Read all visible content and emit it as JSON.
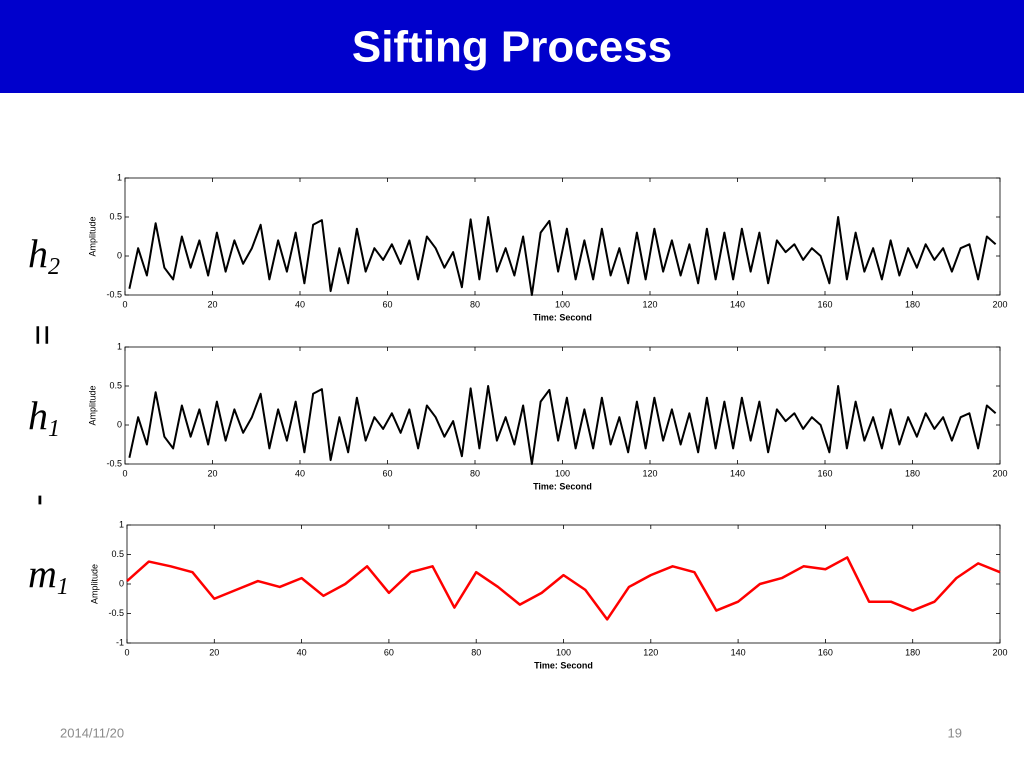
{
  "slide": {
    "title": "Sifting Process",
    "date": "2014/11/20",
    "page": "19",
    "labels": [
      {
        "base": "h",
        "sub": "2"
      },
      {
        "sign": "="
      },
      {
        "base": "h",
        "sub": "1"
      },
      {
        "sign": "-"
      },
      {
        "base": "m",
        "sub": "1"
      }
    ]
  },
  "chart_data": [
    {
      "type": "line",
      "ylabel": "Amplitude",
      "xlabel": "Time: Second",
      "xlim": [
        0,
        200
      ],
      "xticks": [
        0,
        20,
        40,
        60,
        80,
        100,
        120,
        140,
        160,
        180,
        200
      ],
      "ylim": [
        -0.5,
        1
      ],
      "yticks": [
        -0.5,
        0,
        0.5,
        1
      ],
      "x": [
        1,
        3,
        5,
        7,
        9,
        11,
        13,
        15,
        17,
        19,
        21,
        23,
        25,
        27,
        29,
        31,
        33,
        35,
        37,
        39,
        41,
        43,
        45,
        47,
        49,
        51,
        53,
        55,
        57,
        59,
        61,
        63,
        65,
        67,
        69,
        71,
        73,
        75,
        77,
        79,
        81,
        83,
        85,
        87,
        89,
        91,
        93,
        95,
        97,
        99,
        101,
        103,
        105,
        107,
        109,
        111,
        113,
        115,
        117,
        119,
        121,
        123,
        125,
        127,
        129,
        131,
        133,
        135,
        137,
        139,
        141,
        143,
        145,
        147,
        149,
        151,
        153,
        155,
        157,
        159,
        161,
        163,
        165,
        167,
        169,
        171,
        173,
        175,
        177,
        179,
        181,
        183,
        185,
        187,
        189,
        191,
        193,
        195,
        197,
        199
      ],
      "series": [
        {
          "name": "h2",
          "color": "#000000",
          "values": [
            -0.42,
            0.1,
            -0.25,
            0.42,
            -0.15,
            -0.3,
            0.25,
            -0.15,
            0.2,
            -0.25,
            0.3,
            -0.2,
            0.2,
            -0.1,
            0.1,
            0.4,
            -0.3,
            0.2,
            -0.2,
            0.3,
            -0.35,
            0.4,
            0.46,
            -0.45,
            0.1,
            -0.35,
            0.35,
            -0.2,
            0.1,
            -0.05,
            0.15,
            -0.1,
            0.2,
            -0.3,
            0.25,
            0.1,
            -0.15,
            0.05,
            -0.4,
            0.47,
            -0.3,
            0.5,
            -0.2,
            0.1,
            -0.25,
            0.25,
            -0.5,
            0.3,
            0.45,
            -0.2,
            0.35,
            -0.3,
            0.2,
            -0.3,
            0.35,
            -0.25,
            0.1,
            -0.35,
            0.3,
            -0.3,
            0.35,
            -0.2,
            0.2,
            -0.25,
            0.15,
            -0.35,
            0.35,
            -0.3,
            0.3,
            -0.3,
            0.35,
            -0.2,
            0.3,
            -0.35,
            0.2,
            0.05,
            0.15,
            -0.05,
            0.1,
            0.0,
            -0.35,
            0.5,
            -0.3,
            0.3,
            -0.2,
            0.1,
            -0.3,
            0.2,
            -0.25,
            0.1,
            -0.15,
            0.15,
            -0.05,
            0.1,
            -0.2,
            0.1,
            0.15,
            -0.3,
            0.25,
            0.15
          ]
        }
      ]
    },
    {
      "type": "line",
      "ylabel": "Amplitude",
      "xlabel": "Time: Second",
      "xlim": [
        0,
        200
      ],
      "xticks": [
        0,
        20,
        40,
        60,
        80,
        100,
        120,
        140,
        160,
        180,
        200
      ],
      "ylim": [
        -0.5,
        1
      ],
      "yticks": [
        -0.5,
        0,
        0.5,
        1
      ],
      "x": [
        1,
        3,
        5,
        7,
        9,
        11,
        13,
        15,
        17,
        19,
        21,
        23,
        25,
        27,
        29,
        31,
        33,
        35,
        37,
        39,
        41,
        43,
        45,
        47,
        49,
        51,
        53,
        55,
        57,
        59,
        61,
        63,
        65,
        67,
        69,
        71,
        73,
        75,
        77,
        79,
        81,
        83,
        85,
        87,
        89,
        91,
        93,
        95,
        97,
        99,
        101,
        103,
        105,
        107,
        109,
        111,
        113,
        115,
        117,
        119,
        121,
        123,
        125,
        127,
        129,
        131,
        133,
        135,
        137,
        139,
        141,
        143,
        145,
        147,
        149,
        151,
        153,
        155,
        157,
        159,
        161,
        163,
        165,
        167,
        169,
        171,
        173,
        175,
        177,
        179,
        181,
        183,
        185,
        187,
        189,
        191,
        193,
        195,
        197,
        199
      ],
      "series": [
        {
          "name": "h1",
          "color": "#000000",
          "values": [
            -0.42,
            0.1,
            -0.25,
            0.42,
            -0.15,
            -0.3,
            0.25,
            -0.15,
            0.2,
            -0.25,
            0.3,
            -0.2,
            0.2,
            -0.1,
            0.1,
            0.4,
            -0.3,
            0.2,
            -0.2,
            0.3,
            -0.35,
            0.4,
            0.46,
            -0.45,
            0.1,
            -0.35,
            0.35,
            -0.2,
            0.1,
            -0.05,
            0.15,
            -0.1,
            0.2,
            -0.3,
            0.25,
            0.1,
            -0.15,
            0.05,
            -0.4,
            0.47,
            -0.3,
            0.5,
            -0.2,
            0.1,
            -0.25,
            0.25,
            -0.5,
            0.3,
            0.45,
            -0.2,
            0.35,
            -0.3,
            0.2,
            -0.3,
            0.35,
            -0.25,
            0.1,
            -0.35,
            0.3,
            -0.3,
            0.35,
            -0.2,
            0.2,
            -0.25,
            0.15,
            -0.35,
            0.35,
            -0.3,
            0.3,
            -0.3,
            0.35,
            -0.2,
            0.3,
            -0.35,
            0.2,
            0.05,
            0.15,
            -0.05,
            0.1,
            0.0,
            -0.35,
            0.5,
            -0.3,
            0.3,
            -0.2,
            0.1,
            -0.3,
            0.2,
            -0.25,
            0.1,
            -0.15,
            0.15,
            -0.05,
            0.1,
            -0.2,
            0.1,
            0.15,
            -0.3,
            0.25,
            0.15
          ]
        }
      ]
    },
    {
      "type": "line",
      "ylabel": "Amplitude",
      "xlabel": "Time: Second",
      "xlim": [
        0,
        200
      ],
      "xticks": [
        0,
        20,
        40,
        60,
        80,
        100,
        120,
        140,
        160,
        180,
        200
      ],
      "ylim": [
        -1,
        1
      ],
      "yticks": [
        -1,
        -0.5,
        0,
        0.5,
        1
      ],
      "x": [
        0,
        5,
        10,
        15,
        20,
        25,
        30,
        35,
        40,
        45,
        50,
        55,
        60,
        65,
        70,
        75,
        80,
        85,
        90,
        95,
        100,
        105,
        110,
        115,
        120,
        125,
        130,
        135,
        140,
        145,
        150,
        155,
        160,
        165,
        170,
        175,
        180,
        185,
        190,
        195,
        200
      ],
      "series": [
        {
          "name": "m1",
          "color": "#ff0000",
          "values": [
            0.05,
            0.38,
            0.3,
            0.2,
            -0.25,
            -0.1,
            0.05,
            -0.05,
            0.1,
            -0.2,
            0.0,
            0.3,
            -0.15,
            0.2,
            0.3,
            -0.4,
            0.2,
            -0.05,
            -0.35,
            -0.15,
            0.15,
            -0.1,
            -0.6,
            -0.05,
            0.15,
            0.3,
            0.2,
            -0.45,
            -0.3,
            0.0,
            0.1,
            0.3,
            0.25,
            0.45,
            -0.3,
            -0.3,
            -0.45,
            -0.3,
            0.1,
            0.35,
            0.2
          ]
        }
      ]
    }
  ]
}
